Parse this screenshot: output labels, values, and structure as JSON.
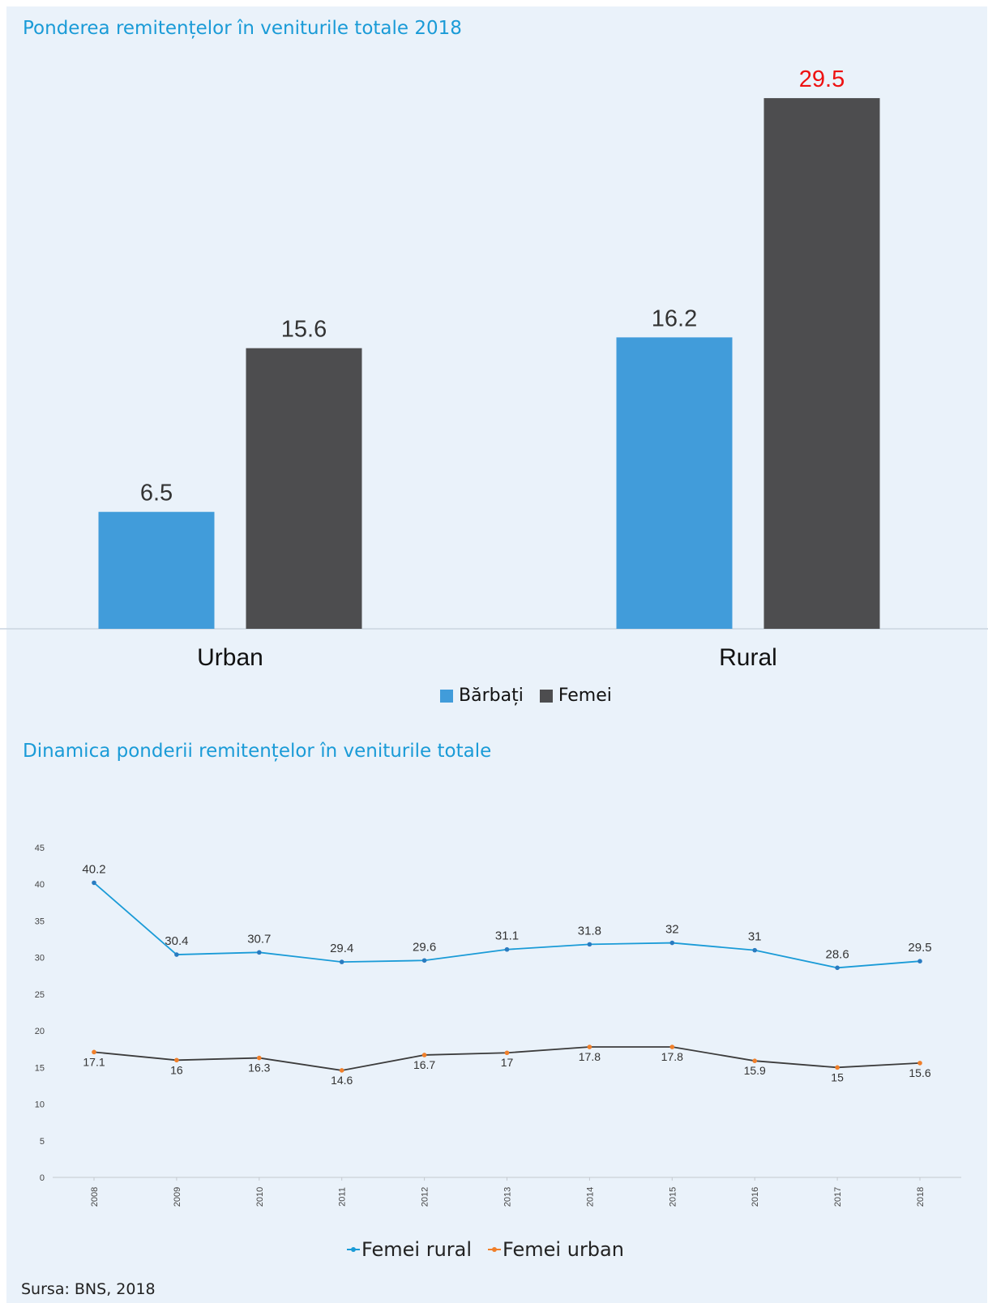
{
  "charts": {
    "bar_title": "Ponderea remitențelor în veniturile totale 2018",
    "line_title": "Dinamica ponderii remitențelor în veniturile totale",
    "source": "Sursa: BNS, 2018"
  },
  "legend1": {
    "barbati": "Bărbați",
    "femei": "Femei"
  },
  "legend2": {
    "rural": "Femei rural",
    "urban": "Femei urban"
  },
  "colors": {
    "blue": "#419cda",
    "dark": "#4d4d4f",
    "highlight": "#ee1111",
    "line_rural": "#1a9bd7",
    "line_urban": "#3c3c3c",
    "marker_rural": "#2a7bc0",
    "marker_urban": "#f07f2a"
  },
  "chart_data": [
    {
      "type": "bar",
      "title": "Ponderea remitențelor în veniturile totale 2018",
      "categories": [
        "Urban",
        "Rural"
      ],
      "series": [
        {
          "name": "Bărbați",
          "values": [
            6.5,
            16.2
          ]
        },
        {
          "name": "Femei",
          "values": [
            15.6,
            29.5
          ]
        }
      ],
      "legend": "bottom",
      "grid": false
    },
    {
      "type": "line",
      "title": "Dinamica ponderii remitențelor în veniturile totale",
      "x": [
        "2008",
        "2009",
        "2010",
        "2011",
        "2012",
        "2013",
        "2014",
        "2015",
        "2016",
        "2017",
        "2018"
      ],
      "series": [
        {
          "name": "Femei rural",
          "values": [
            40.2,
            30.4,
            30.7,
            29.4,
            29.6,
            31.1,
            31.8,
            32,
            31,
            28.6,
            29.5
          ]
        },
        {
          "name": "Femei urban",
          "values": [
            17.1,
            16,
            16.3,
            14.6,
            16.7,
            17,
            17.8,
            17.8,
            15.9,
            15,
            15.6
          ]
        }
      ],
      "ylim": [
        0,
        45
      ],
      "yticks": [
        0,
        5,
        10,
        15,
        20,
        25,
        30,
        35,
        40,
        45
      ],
      "legend": "bottom",
      "grid": false
    }
  ]
}
